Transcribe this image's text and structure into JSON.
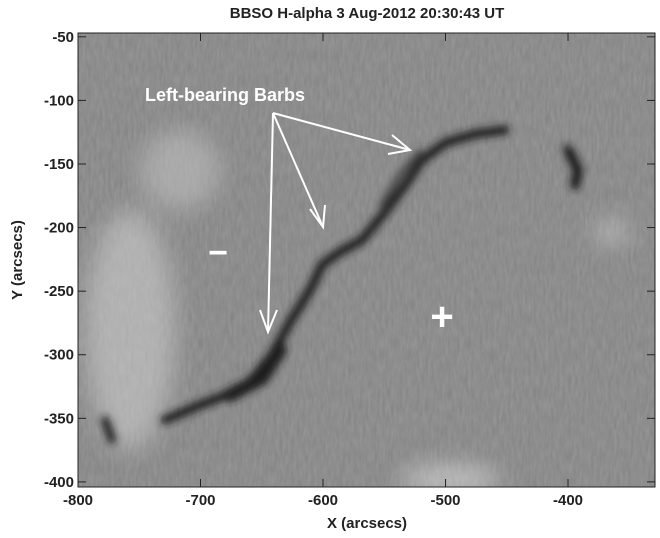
{
  "chart_data": {
    "type": "image",
    "title": "BBSO H-alpha 3 Aug-2012 20:30:43 UT",
    "x_label": "X (arcsecs)",
    "y_label": "Y (arcsecs)",
    "xlim": [
      -800,
      -329
    ],
    "ylim": [
      -404,
      -47
    ],
    "xticks": [
      -800,
      -700,
      -600,
      -500,
      -400
    ],
    "yticks": [
      -50,
      -100,
      -150,
      -200,
      -250,
      -300,
      -350,
      -400
    ],
    "annotations": [
      "Left-bearing Barbs",
      "−",
      "+"
    ]
  }
}
